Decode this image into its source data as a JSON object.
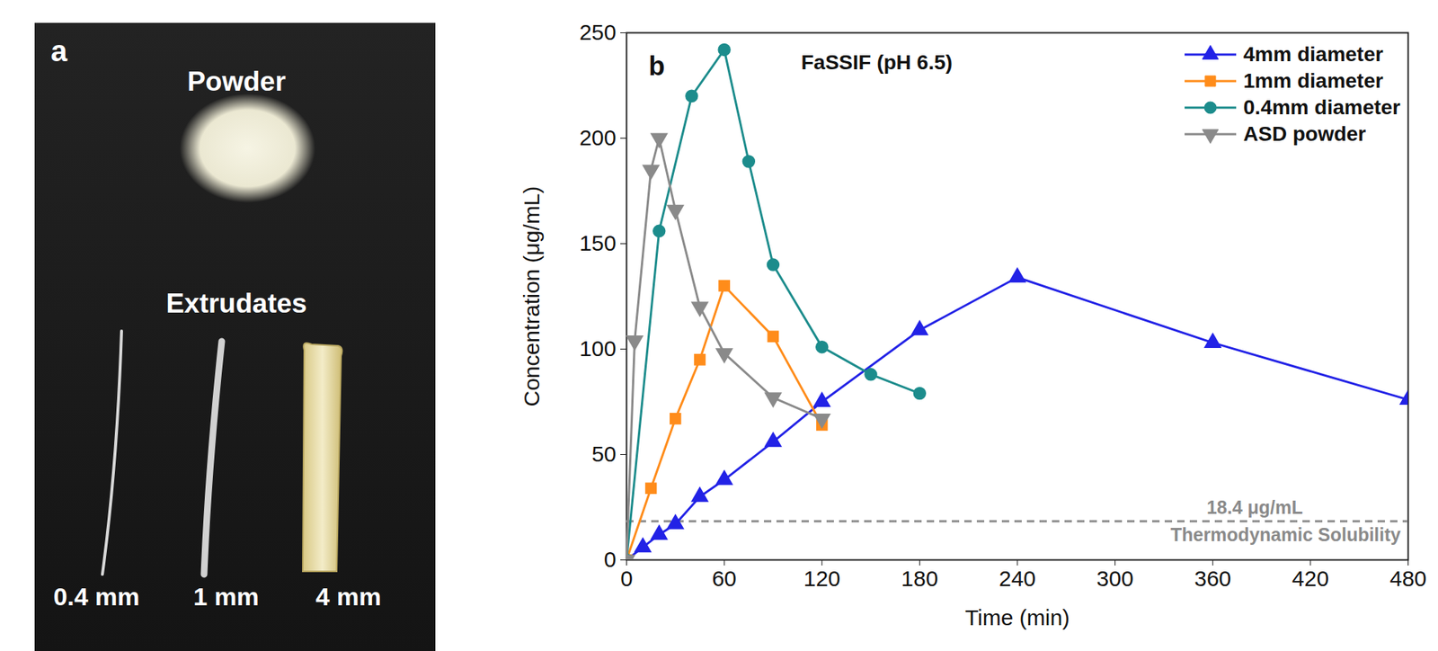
{
  "chart_data": {
    "type": "line",
    "panel": "b",
    "title": "FaSSIF (pH 6.5)",
    "x_label": "Time (min)",
    "y_label": "Concentration (μg/mL)",
    "xlim": [
      0,
      480
    ],
    "xticks": [
      0,
      60,
      120,
      180,
      240,
      300,
      360,
      420,
      480
    ],
    "ylim": [
      0,
      250
    ],
    "yticks": [
      0,
      50,
      100,
      150,
      200,
      250
    ],
    "grid": false,
    "legend": "top-right",
    "reference": {
      "value": 18.4,
      "label": "18.4 μg/mL",
      "text": "Thermodynamic Solubility"
    },
    "series": [
      {
        "name": "4mm diameter",
        "color": "#2222e6",
        "marker": "triangle",
        "x": [
          0,
          10,
          20,
          30,
          45,
          60,
          90,
          120,
          180,
          240,
          360,
          480
        ],
        "values": [
          0,
          6,
          12,
          17,
          30,
          38,
          56,
          75,
          109,
          134,
          103,
          76
        ]
      },
      {
        "name": "1mm diameter",
        "color": "#ff8c1a",
        "marker": "square",
        "x": [
          0,
          15,
          30,
          45,
          60,
          90,
          120
        ],
        "values": [
          0,
          34,
          67,
          95,
          130,
          106,
          64
        ]
      },
      {
        "name": "0.4mm diameter",
        "color": "#1c8c8c",
        "marker": "circle",
        "x": [
          0,
          20,
          40,
          60,
          75,
          90,
          120,
          150,
          180
        ],
        "values": [
          0,
          156,
          220,
          242,
          189,
          140,
          101,
          88,
          79
        ]
      },
      {
        "name": "ASD powder",
        "color": "#8a8a8a",
        "marker": "triangle-down",
        "x": [
          0,
          5,
          15,
          20,
          30,
          45,
          60,
          90,
          120
        ],
        "values": [
          0,
          104,
          185,
          200,
          166,
          120,
          98,
          77,
          67
        ]
      }
    ]
  },
  "photo": {
    "panel": "a",
    "powder": "Powder",
    "extrudates": "Extrudates",
    "strands": [
      "0.4 mm",
      "1 mm",
      "4 mm"
    ]
  }
}
